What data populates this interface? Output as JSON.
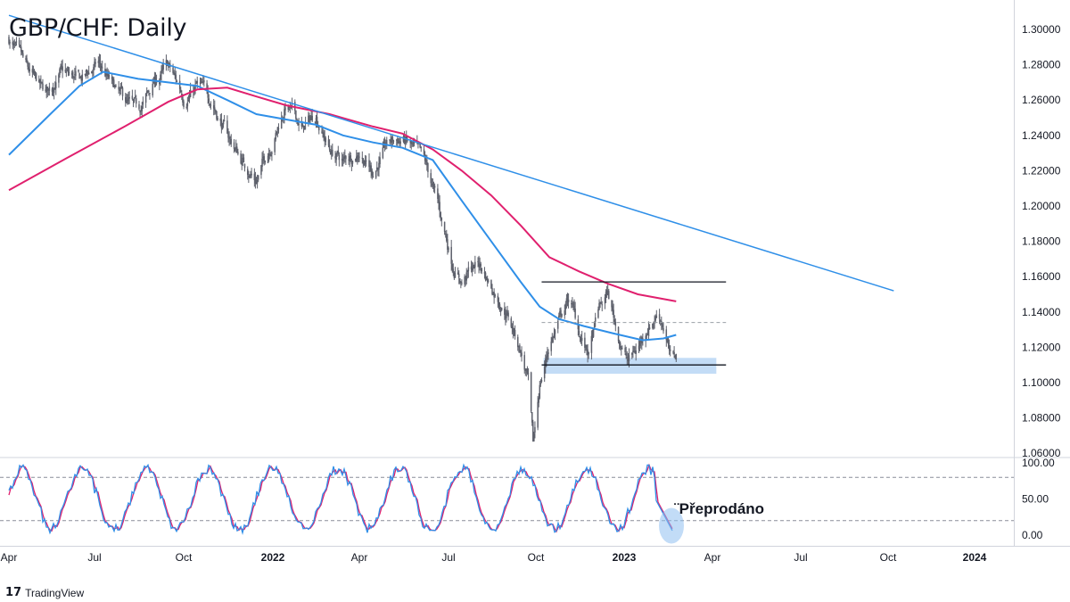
{
  "chart_data": [
    {
      "type": "candlestick",
      "title": "GBP/CHF: Daily",
      "y_axis": {
        "range": [
          1.06,
          1.31
        ],
        "tick_labels": [
          "1.30000",
          "1.28000",
          "1.26000",
          "1.24000",
          "1.22000",
          "1.20000",
          "1.18000",
          "1.16000",
          "1.14000",
          "1.12000",
          "1.10000",
          "1.08000",
          "1.06000"
        ]
      },
      "x_axis": {
        "tick_labels": [
          "Apr",
          "Jul",
          "Oct",
          "2022",
          "Apr",
          "Jul",
          "Oct",
          "2023",
          "Apr",
          "Jul",
          "Oct",
          "2024"
        ],
        "bold_ticks": [
          "2022",
          "2023",
          "2024"
        ]
      },
      "close_profile": [
        [
          "2021-04-01",
          1.295
        ],
        [
          "2021-04-20",
          1.275
        ],
        [
          "2021-05-10",
          1.262
        ],
        [
          "2021-05-25",
          1.275
        ],
        [
          "2021-06-15",
          1.27
        ],
        [
          "2021-07-05",
          1.28
        ],
        [
          "2021-07-25",
          1.262
        ],
        [
          "2021-08-15",
          1.252
        ],
        [
          "2021-09-01",
          1.27
        ],
        [
          "2021-09-15",
          1.278
        ],
        [
          "2021-10-01",
          1.262
        ],
        [
          "2021-10-15",
          1.268
        ],
        [
          "2021-11-01",
          1.258
        ],
        [
          "2021-11-15",
          1.24
        ],
        [
          "2021-12-01",
          1.225
        ],
        [
          "2021-12-15",
          1.215
        ],
        [
          "2022-01-01",
          1.238
        ],
        [
          "2022-01-15",
          1.258
        ],
        [
          "2022-02-01",
          1.243
        ],
        [
          "2022-02-15",
          1.252
        ],
        [
          "2022-03-01",
          1.232
        ],
        [
          "2022-03-15",
          1.225
        ],
        [
          "2022-04-01",
          1.232
        ],
        [
          "2022-04-15",
          1.22
        ],
        [
          "2022-05-01",
          1.235
        ],
        [
          "2022-05-15",
          1.238
        ],
        [
          "2022-06-01",
          1.228
        ],
        [
          "2022-06-10",
          1.218
        ],
        [
          "2022-06-20",
          1.2
        ],
        [
          "2022-07-05",
          1.168
        ],
        [
          "2022-07-15",
          1.158
        ],
        [
          "2022-08-01",
          1.168
        ],
        [
          "2022-08-15",
          1.155
        ],
        [
          "2022-09-01",
          1.14
        ],
        [
          "2022-09-15",
          1.118
        ],
        [
          "2022-09-23",
          1.1
        ],
        [
          "2022-09-28",
          1.062
        ],
        [
          "2022-10-05",
          1.098
        ],
        [
          "2022-10-15",
          1.122
        ],
        [
          "2022-10-25",
          1.135
        ],
        [
          "2022-11-05",
          1.148
        ],
        [
          "2022-11-15",
          1.128
        ],
        [
          "2022-11-25",
          1.115
        ],
        [
          "2022-12-05",
          1.14
        ],
        [
          "2022-12-15",
          1.15
        ],
        [
          "2022-12-25",
          1.128
        ],
        [
          "2023-01-05",
          1.112
        ],
        [
          "2023-01-15",
          1.12
        ],
        [
          "2023-01-25",
          1.132
        ],
        [
          "2023-02-05",
          1.141
        ],
        [
          "2023-02-12",
          1.13
        ],
        [
          "2023-02-18",
          1.111
        ],
        [
          "2023-02-23",
          1.115
        ]
      ],
      "moving_averages": [
        {
          "color": "#2f8fe8",
          "points": [
            [
              "2021-04-01",
              1.229
            ],
            [
              "2021-05-15",
              1.252
            ],
            [
              "2021-06-15",
              1.268
            ],
            [
              "2021-07-10",
              1.276
            ],
            [
              "2021-08-15",
              1.272
            ],
            [
              "2021-09-15",
              1.27
            ],
            [
              "2021-10-15",
              1.268
            ],
            [
              "2021-11-15",
              1.26
            ],
            [
              "2021-12-15",
              1.252
            ],
            [
              "2022-01-15",
              1.249
            ],
            [
              "2022-02-15",
              1.246
            ],
            [
              "2022-03-15",
              1.24
            ],
            [
              "2022-04-15",
              1.236
            ],
            [
              "2022-05-15",
              1.233
            ],
            [
              "2022-06-15",
              1.226
            ],
            [
              "2022-07-15",
              1.203
            ],
            [
              "2022-08-15",
              1.18
            ],
            [
              "2022-09-15",
              1.157
            ],
            [
              "2022-10-05",
              1.143
            ],
            [
              "2022-10-25",
              1.136
            ],
            [
              "2022-11-20",
              1.132
            ],
            [
              "2022-12-20",
              1.128
            ],
            [
              "2023-01-20",
              1.124
            ],
            [
              "2023-02-10",
              1.125
            ],
            [
              "2023-02-23",
              1.127
            ]
          ]
        },
        {
          "color": "#e0206e",
          "points": [
            [
              "2021-04-01",
              1.209
            ],
            [
              "2021-06-01",
              1.227
            ],
            [
              "2021-08-01",
              1.245
            ],
            [
              "2021-09-15",
              1.259
            ],
            [
              "2021-10-15",
              1.266
            ],
            [
              "2021-11-15",
              1.267
            ],
            [
              "2021-12-15",
              1.262
            ],
            [
              "2022-01-15",
              1.257
            ],
            [
              "2022-03-01",
              1.252
            ],
            [
              "2022-04-15",
              1.245
            ],
            [
              "2022-05-15",
              1.241
            ],
            [
              "2022-06-15",
              1.232
            ],
            [
              "2022-07-15",
              1.22
            ],
            [
              "2022-08-15",
              1.206
            ],
            [
              "2022-09-15",
              1.189
            ],
            [
              "2022-10-15",
              1.171
            ],
            [
              "2022-11-15",
              1.163
            ],
            [
              "2022-12-15",
              1.156
            ],
            [
              "2023-01-15",
              1.15
            ],
            [
              "2023-02-23",
              1.146
            ]
          ]
        }
      ],
      "trendline": {
        "color": "#2f8fe8",
        "from": [
          "2021-04-01",
          1.308
        ],
        "to": [
          "2023-10-07",
          1.152
        ]
      },
      "levels": [
        {
          "style": "solid",
          "color": "#131722",
          "value": 1.157,
          "from": "2022-10-07",
          "to": "2023-04-15"
        },
        {
          "style": "dashed",
          "color": "#9aa0a6",
          "value": 1.134,
          "from": "2022-10-07",
          "to": "2023-04-15"
        },
        {
          "style": "solid",
          "color": "#131722",
          "value": 1.11,
          "from": "2022-10-07",
          "to": "2023-04-15"
        }
      ],
      "zone": {
        "color": "#bcd8f5",
        "from": "2022-10-09",
        "to": "2023-04-05",
        "y_low": 1.105,
        "y_high": 1.114
      }
    },
    {
      "type": "line",
      "name": "stochastic",
      "y_axis": {
        "range": [
          0,
          100
        ],
        "tick_labels": [
          "100.00",
          "50.00",
          "0.00"
        ]
      },
      "reference_levels": [
        80,
        20
      ],
      "colors": {
        "k": "#2f8fe8",
        "d": "#e0206e"
      },
      "annotation": {
        "text": "¨Přeprodáno",
        "value": 5,
        "date": "2023-02-20"
      }
    }
  ],
  "footer": {
    "brand": "TradingView",
    "logo": "17"
  }
}
